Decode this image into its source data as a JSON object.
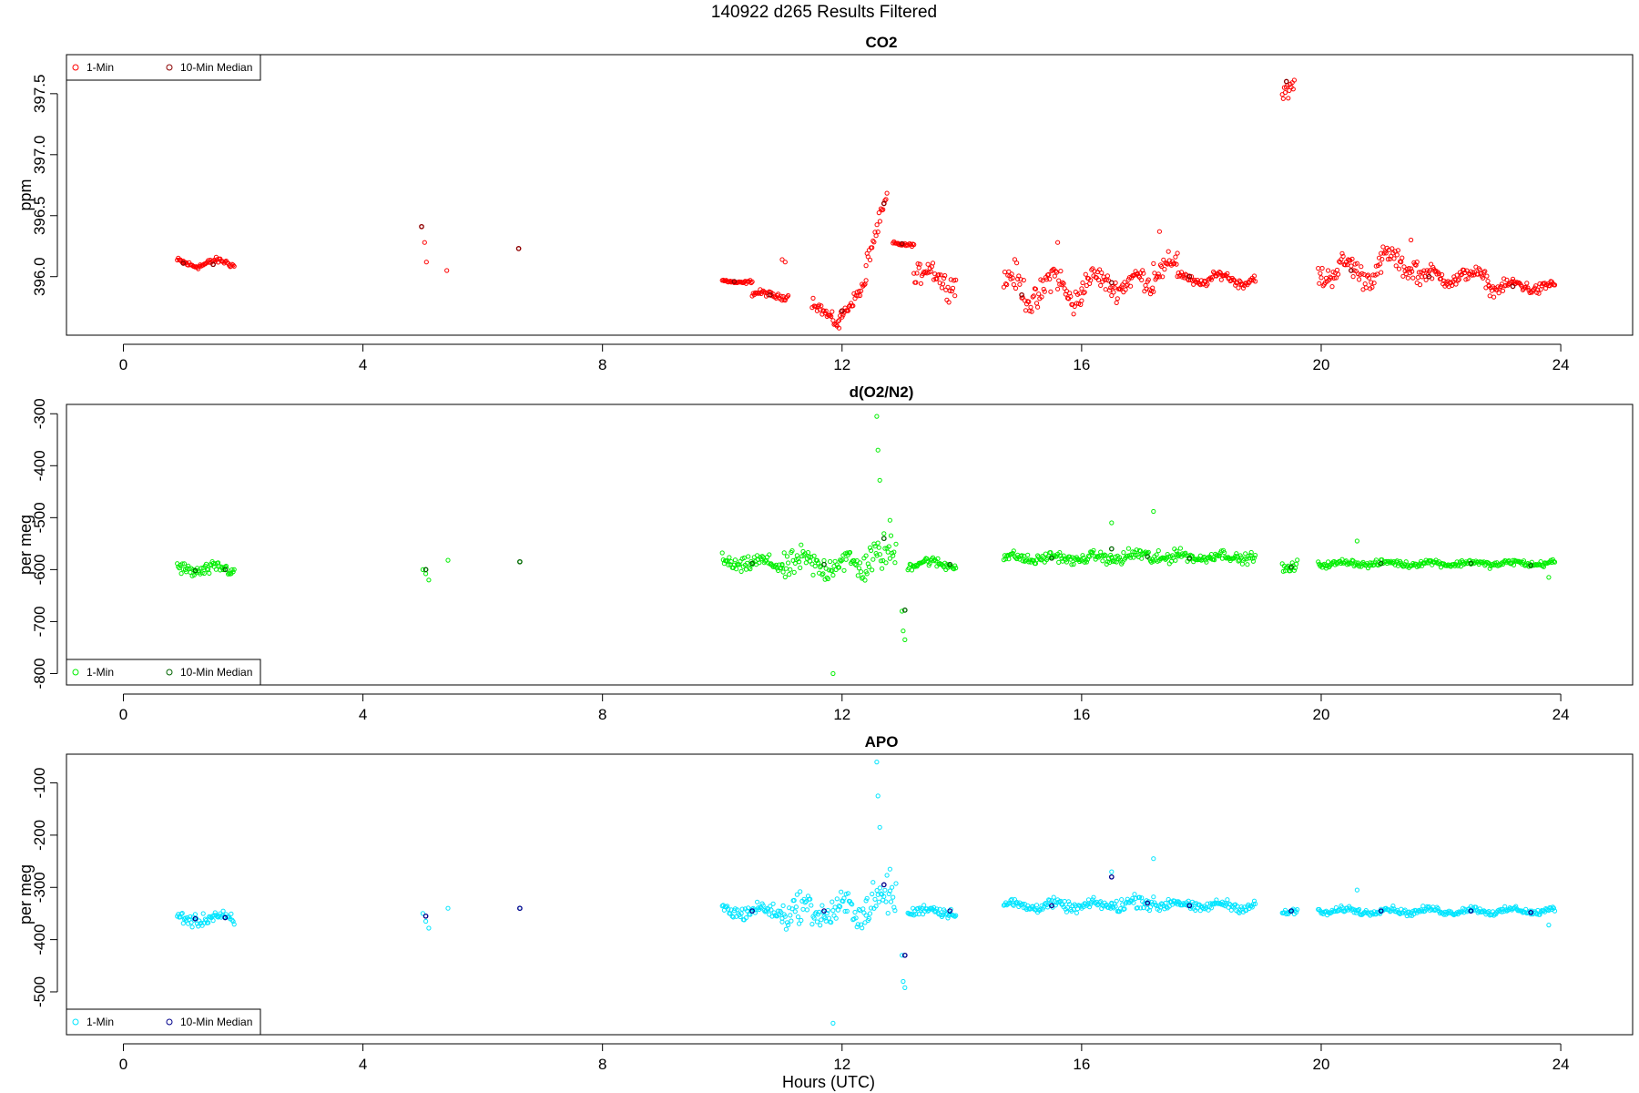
{
  "figure": {
    "title": "140922    d265    Results Filtered",
    "xlabel": "Hours (UTC)"
  },
  "chart_data": [
    {
      "type": "scatter",
      "title": "CO2",
      "ylabel": "ppm",
      "xlim": [
        -0.95,
        25.2
      ],
      "ylim": [
        395.52,
        397.82
      ],
      "xticks": [
        0,
        4,
        8,
        12,
        16,
        20,
        24
      ],
      "yticks": [
        396.0,
        396.5,
        397.0,
        397.5
      ],
      "ytick_labels": [
        "396.0",
        "396.5",
        "397.0",
        "397.5"
      ],
      "legend": {
        "position": "top-left",
        "entries": [
          "1-Min",
          "10-Min Median"
        ]
      },
      "colors": {
        "one_min": "#ff0000",
        "median": "#8b0000"
      },
      "series": [
        {
          "name": "1-Min",
          "segments": [
            {
              "x0": 0.9,
              "x1": 1.85,
              "base": 396.11,
              "wiggle": 0.025,
              "noise": 0.02
            },
            {
              "x0": 10.0,
              "x1": 10.5,
              "base": 395.96,
              "wiggle": 0.01,
              "noise": 0.01
            },
            {
              "x0": 10.5,
              "x1": 11.1,
              "base": 395.85,
              "wiggle": 0.02,
              "noise": 0.02
            },
            {
              "x0": 11.5,
              "x1": 11.95,
              "base": 395.8,
              "trend": -0.2,
              "noise": 0.04
            },
            {
              "x0": 11.95,
              "x1": 12.4,
              "base": 395.65,
              "trend": 0.3,
              "noise": 0.04
            },
            {
              "x0": 12.4,
              "x1": 12.75,
              "base": 396.1,
              "trend": 0.55,
              "noise": 0.06
            },
            {
              "x0": 12.85,
              "x1": 13.2,
              "base": 396.27,
              "wiggle": 0.01,
              "noise": 0.01
            },
            {
              "x0": 13.2,
              "x1": 13.9,
              "base": 396.0,
              "wiggle": 0.08,
              "noise": 0.08
            },
            {
              "x0": 14.7,
              "x1": 16.0,
              "base": 395.9,
              "wiggle": 0.12,
              "noise": 0.1
            },
            {
              "x0": 16.0,
              "x1": 17.2,
              "base": 395.95,
              "wiggle": 0.06,
              "noise": 0.07
            },
            {
              "x0": 17.2,
              "x1": 17.6,
              "base": 396.1,
              "wiggle": 0.06,
              "noise": 0.08
            },
            {
              "x0": 17.6,
              "x1": 18.9,
              "base": 395.98,
              "wiggle": 0.04,
              "noise": 0.03
            },
            {
              "x0": 19.35,
              "x1": 19.55,
              "base": 397.58,
              "wiggle": 0.08,
              "noise": 0.06
            },
            {
              "x0": 19.95,
              "x1": 21.0,
              "base": 396.05,
              "wiggle": 0.07,
              "noise": 0.08
            },
            {
              "x0": 21.0,
              "x1": 21.6,
              "base": 396.12,
              "wiggle": 0.07,
              "noise": 0.07
            },
            {
              "x0": 21.6,
              "x1": 22.8,
              "base": 396.0,
              "wiggle": 0.04,
              "noise": 0.05
            },
            {
              "x0": 22.8,
              "x1": 23.9,
              "base": 395.92,
              "wiggle": 0.03,
              "noise": 0.04
            }
          ],
          "points": [
            [
              4.98,
              396.41
            ],
            [
              5.03,
              396.28
            ],
            [
              5.06,
              396.12
            ],
            [
              5.4,
              396.05
            ],
            [
              6.6,
              396.23
            ],
            [
              11.0,
              396.14
            ],
            [
              11.05,
              396.12
            ],
            [
              15.6,
              396.28
            ],
            [
              17.3,
              396.37
            ],
            [
              21.5,
              396.3
            ]
          ]
        },
        {
          "name": "10-Min Median",
          "points": [
            [
              1.0,
              396.11
            ],
            [
              1.5,
              396.1
            ],
            [
              4.98,
              396.41
            ],
            [
              6.6,
              396.23
            ],
            [
              10.2,
              395.96
            ],
            [
              10.8,
              395.85
            ],
            [
              12.0,
              395.72
            ],
            [
              12.7,
              396.6
            ],
            [
              13.0,
              396.27
            ],
            [
              15.0,
              395.85
            ],
            [
              16.5,
              395.95
            ],
            [
              17.8,
              396.0
            ],
            [
              19.42,
              397.6
            ],
            [
              20.5,
              396.05
            ],
            [
              21.8,
              396.0
            ],
            [
              23.2,
              395.92
            ]
          ]
        }
      ]
    },
    {
      "type": "scatter",
      "title": "d(O2/N2)",
      "ylabel": "per meg",
      "xlim": [
        -0.95,
        25.2
      ],
      "ylim": [
        -822,
        -282
      ],
      "xticks": [
        0,
        4,
        8,
        12,
        16,
        20,
        24
      ],
      "yticks": [
        -800,
        -700,
        -600,
        -500,
        -400,
        -300
      ],
      "ytick_labels": [
        "-800",
        "-700",
        "-600",
        "-500",
        "-400",
        "-300"
      ],
      "legend": {
        "position": "bottom-left",
        "entries": [
          "1-Min",
          "10-Min Median"
        ]
      },
      "colors": {
        "one_min": "#00ee00",
        "median": "#006400"
      },
      "series": [
        {
          "name": "1-Min",
          "segments": [
            {
              "x0": 0.9,
              "x1": 1.85,
              "base": -600,
              "wiggle": 5,
              "noise": 10
            },
            {
              "x0": 10.0,
              "x1": 11.0,
              "base": -588,
              "wiggle": 6,
              "noise": 12
            },
            {
              "x0": 11.0,
              "x1": 12.4,
              "base": -590,
              "wiggle": 10,
              "noise": 22
            },
            {
              "x0": 12.4,
              "x1": 12.9,
              "base": -575,
              "wiggle": 10,
              "noise": 30
            },
            {
              "x0": 13.1,
              "x1": 13.9,
              "base": -588,
              "wiggle": 5,
              "noise": 8
            },
            {
              "x0": 14.7,
              "x1": 16.5,
              "base": -578,
              "wiggle": 5,
              "noise": 8
            },
            {
              "x0": 16.5,
              "x1": 17.6,
              "base": -575,
              "wiggle": 6,
              "noise": 12
            },
            {
              "x0": 17.6,
              "x1": 18.9,
              "base": -575,
              "wiggle": 5,
              "noise": 8
            },
            {
              "x0": 19.35,
              "x1": 19.6,
              "base": -595,
              "wiggle": 5,
              "noise": 10
            },
            {
              "x0": 19.95,
              "x1": 23.9,
              "base": -588,
              "wiggle": 3,
              "noise": 5
            }
          ],
          "points": [
            [
              5.0,
              -600
            ],
            [
              5.05,
              -608
            ],
            [
              5.1,
              -620
            ],
            [
              5.42,
              -582
            ],
            [
              6.62,
              -585
            ],
            [
              11.85,
              -800
            ],
            [
              12.58,
              -305
            ],
            [
              12.6,
              -370
            ],
            [
              12.63,
              -428
            ],
            [
              12.8,
              -505
            ],
            [
              13.0,
              -680
            ],
            [
              13.02,
              -718
            ],
            [
              13.05,
              -735
            ],
            [
              16.5,
              -510
            ],
            [
              17.2,
              -488
            ],
            [
              20.6,
              -545
            ],
            [
              23.8,
              -615
            ]
          ]
        },
        {
          "name": "10-Min Median",
          "points": [
            [
              1.2,
              -602
            ],
            [
              1.7,
              -600
            ],
            [
              5.05,
              -600
            ],
            [
              6.62,
              -585
            ],
            [
              10.5,
              -588
            ],
            [
              11.7,
              -590
            ],
            [
              12.7,
              -540
            ],
            [
              13.05,
              -678
            ],
            [
              13.8,
              -590
            ],
            [
              15.5,
              -578
            ],
            [
              16.5,
              -560
            ],
            [
              17.1,
              -575
            ],
            [
              17.8,
              -578
            ],
            [
              19.5,
              -595
            ],
            [
              21.0,
              -588
            ],
            [
              22.5,
              -588
            ],
            [
              23.5,
              -592
            ]
          ]
        }
      ]
    },
    {
      "type": "scatter",
      "title": "APO",
      "ylabel": "per meg",
      "xlim": [
        -0.95,
        25.2
      ],
      "ylim": [
        -582,
        -45
      ],
      "xticks": [
        0,
        4,
        8,
        12,
        16,
        20,
        24
      ],
      "yticks": [
        -500,
        -400,
        -300,
        -200,
        -100
      ],
      "ytick_labels": [
        "-500",
        "-400",
        "-300",
        "-200",
        "-100"
      ],
      "legend": {
        "position": "bottom-left",
        "entries": [
          "1-Min",
          "10-Min Median"
        ]
      },
      "colors": {
        "one_min": "#00e5ff",
        "median": "#00008b"
      },
      "series": [
        {
          "name": "1-Min",
          "segments": [
            {
              "x0": 0.9,
              "x1": 1.85,
              "base": -360,
              "wiggle": 6,
              "noise": 10
            },
            {
              "x0": 10.0,
              "x1": 11.0,
              "base": -345,
              "wiggle": 6,
              "noise": 12
            },
            {
              "x0": 11.0,
              "x1": 12.4,
              "base": -345,
              "wiggle": 12,
              "noise": 24
            },
            {
              "x0": 12.4,
              "x1": 12.9,
              "base": -325,
              "wiggle": 10,
              "noise": 30
            },
            {
              "x0": 13.1,
              "x1": 13.9,
              "base": -345,
              "wiggle": 5,
              "noise": 8
            },
            {
              "x0": 14.7,
              "x1": 16.5,
              "base": -335,
              "wiggle": 5,
              "noise": 8
            },
            {
              "x0": 16.5,
              "x1": 17.6,
              "base": -330,
              "wiggle": 6,
              "noise": 12
            },
            {
              "x0": 17.6,
              "x1": 18.9,
              "base": -335,
              "wiggle": 5,
              "noise": 7
            },
            {
              "x0": 19.35,
              "x1": 19.6,
              "base": -345,
              "wiggle": 4,
              "noise": 6
            },
            {
              "x0": 19.95,
              "x1": 23.9,
              "base": -345,
              "wiggle": 4,
              "noise": 5
            }
          ],
          "points": [
            [
              5.0,
              -350
            ],
            [
              5.05,
              -365
            ],
            [
              5.1,
              -378
            ],
            [
              5.42,
              -340
            ],
            [
              6.62,
              -340
            ],
            [
              11.85,
              -560
            ],
            [
              12.58,
              -60
            ],
            [
              12.6,
              -125
            ],
            [
              12.63,
              -185
            ],
            [
              12.8,
              -265
            ],
            [
              13.0,
              -430
            ],
            [
              13.02,
              -480
            ],
            [
              13.05,
              -492
            ],
            [
              16.5,
              -270
            ],
            [
              17.2,
              -245
            ],
            [
              20.6,
              -305
            ],
            [
              23.8,
              -372
            ]
          ]
        },
        {
          "name": "10-Min Median",
          "points": [
            [
              1.2,
              -360
            ],
            [
              1.7,
              -358
            ],
            [
              5.05,
              -355
            ],
            [
              6.62,
              -340
            ],
            [
              10.5,
              -345
            ],
            [
              11.7,
              -345
            ],
            [
              12.7,
              -295
            ],
            [
              13.05,
              -430
            ],
            [
              13.8,
              -345
            ],
            [
              15.5,
              -335
            ],
            [
              16.5,
              -280
            ],
            [
              17.1,
              -330
            ],
            [
              17.8,
              -335
            ],
            [
              19.5,
              -345
            ],
            [
              21.0,
              -345
            ],
            [
              22.5,
              -345
            ],
            [
              23.5,
              -348
            ]
          ]
        }
      ]
    }
  ]
}
